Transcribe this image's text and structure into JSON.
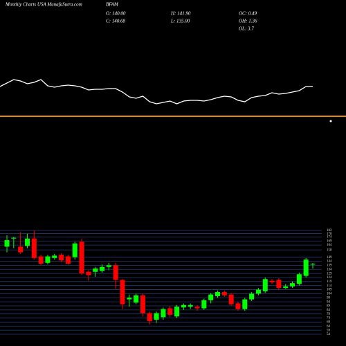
{
  "chart_data": {
    "type": "candlestick",
    "title": "Monthly Charts USA MunafaSutra.com",
    "symbol": "BFAM",
    "stats": [
      {
        "label": "O: 140.00"
      },
      {
        "label": "H: 141.90"
      },
      {
        "label": "OC: 0.49"
      },
      {
        "label": "C: 140.68"
      },
      {
        "label": "L: 135.00"
      },
      {
        "label": "OH: 1.36"
      },
      {
        "label": "OL: 3.7"
      }
    ],
    "up_color": "#00ff00",
    "down_color": "#ff0000",
    "open": [
      162,
      172,
      162,
      163,
      172,
      150,
      142,
      148,
      152,
      150,
      149,
      168,
      131,
      131,
      132,
      137,
      139,
      121,
      97,
      93,
      102,
      80,
      72,
      75,
      86,
      76,
      87,
      88,
      88,
      86,
      96,
      101,
      106,
      103,
      92,
      85,
      97,
      104,
      107,
      120,
      121,
      111,
      113,
      116,
      126,
      140.0
    ],
    "high": [
      176,
      174,
      180,
      178,
      182,
      152,
      152,
      153,
      154,
      152,
      168,
      172,
      133,
      137,
      140,
      142,
      142,
      122,
      103,
      104,
      104,
      82,
      82,
      87,
      89,
      90,
      92,
      92,
      90,
      98,
      105,
      108,
      108,
      105,
      94,
      99,
      106,
      111,
      124,
      122,
      123,
      116,
      119,
      130,
      148,
      141.9
    ],
    "low": [
      155,
      160,
      153,
      160,
      146,
      139,
      140,
      146,
      143,
      140,
      146,
      127,
      120,
      125,
      130,
      133,
      110,
      85,
      88,
      91,
      76,
      66,
      68,
      72,
      75,
      74,
      84,
      85,
      83,
      84,
      92,
      99,
      100,
      89,
      83,
      83,
      95,
      102,
      105,
      116,
      109,
      110,
      111,
      114,
      124,
      135.0
    ],
    "close": [
      170,
      173,
      155,
      172,
      148,
      141,
      150,
      151,
      145,
      141,
      166,
      129,
      127,
      135,
      137,
      139,
      121,
      91,
      99,
      102,
      80,
      70,
      80,
      85,
      78,
      88,
      90,
      90,
      86,
      96,
      103,
      106,
      102,
      91,
      85,
      97,
      104,
      109,
      122,
      118,
      111,
      113,
      117,
      128,
      146,
      140.68
    ],
    "ylim": [
      54,
      182
    ],
    "yticks": [
      54,
      59,
      64,
      69,
      74,
      79,
      84,
      89,
      94,
      99,
      104,
      109,
      114,
      119,
      124,
      129,
      134,
      139,
      144,
      149,
      158,
      164,
      169,
      174,
      178,
      182
    ],
    "grid": true,
    "grid_color": "#2a3a7a",
    "indicator": {
      "color": "#ffffff",
      "ylim": [
        0,
        50
      ],
      "values": [
        35,
        45,
        43,
        39,
        41,
        45,
        36,
        34,
        36,
        37,
        36,
        34,
        30,
        31,
        31,
        32,
        32,
        27,
        20,
        18,
        21,
        13,
        10,
        12,
        14,
        10,
        14,
        15,
        15,
        14,
        16,
        19,
        21,
        20,
        15,
        13,
        19,
        21,
        22,
        26,
        24,
        25,
        27,
        29,
        35,
        35
      ]
    }
  }
}
